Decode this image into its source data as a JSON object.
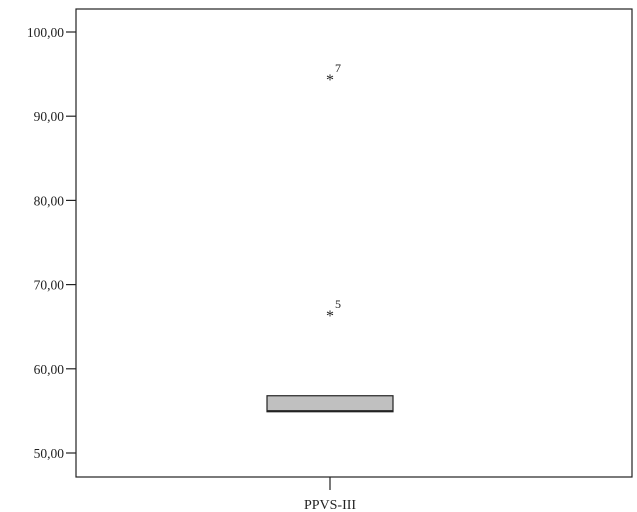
{
  "chart_data": {
    "type": "boxplot",
    "title": "",
    "xlabel": "",
    "ylabel": "",
    "ylim": [
      48,
      103
    ],
    "y_ticks": [
      50,
      60,
      70,
      80,
      90,
      100
    ],
    "y_tick_labels": [
      "50,00",
      "60,00",
      "70,00",
      "80,00",
      "90,00",
      "100,00"
    ],
    "categories": [
      "PPVS-III"
    ],
    "boxes": [
      {
        "category": "PPVS-III",
        "q1": 54.9,
        "median": 55.0,
        "q3": 56.8,
        "whisker_low": 54.9,
        "whisker_high": 56.8,
        "outliers": [
          {
            "value": 95.0,
            "case": "7",
            "marker": "*"
          },
          {
            "value": 67.0,
            "case": "5",
            "marker": "*"
          }
        ]
      }
    ],
    "colors": {
      "box_fill": "#c0c0c0",
      "box_stroke": "#222222",
      "axis": "#222222",
      "text": "#222222",
      "background": "#ffffff"
    },
    "grid": false,
    "legend": "none"
  }
}
